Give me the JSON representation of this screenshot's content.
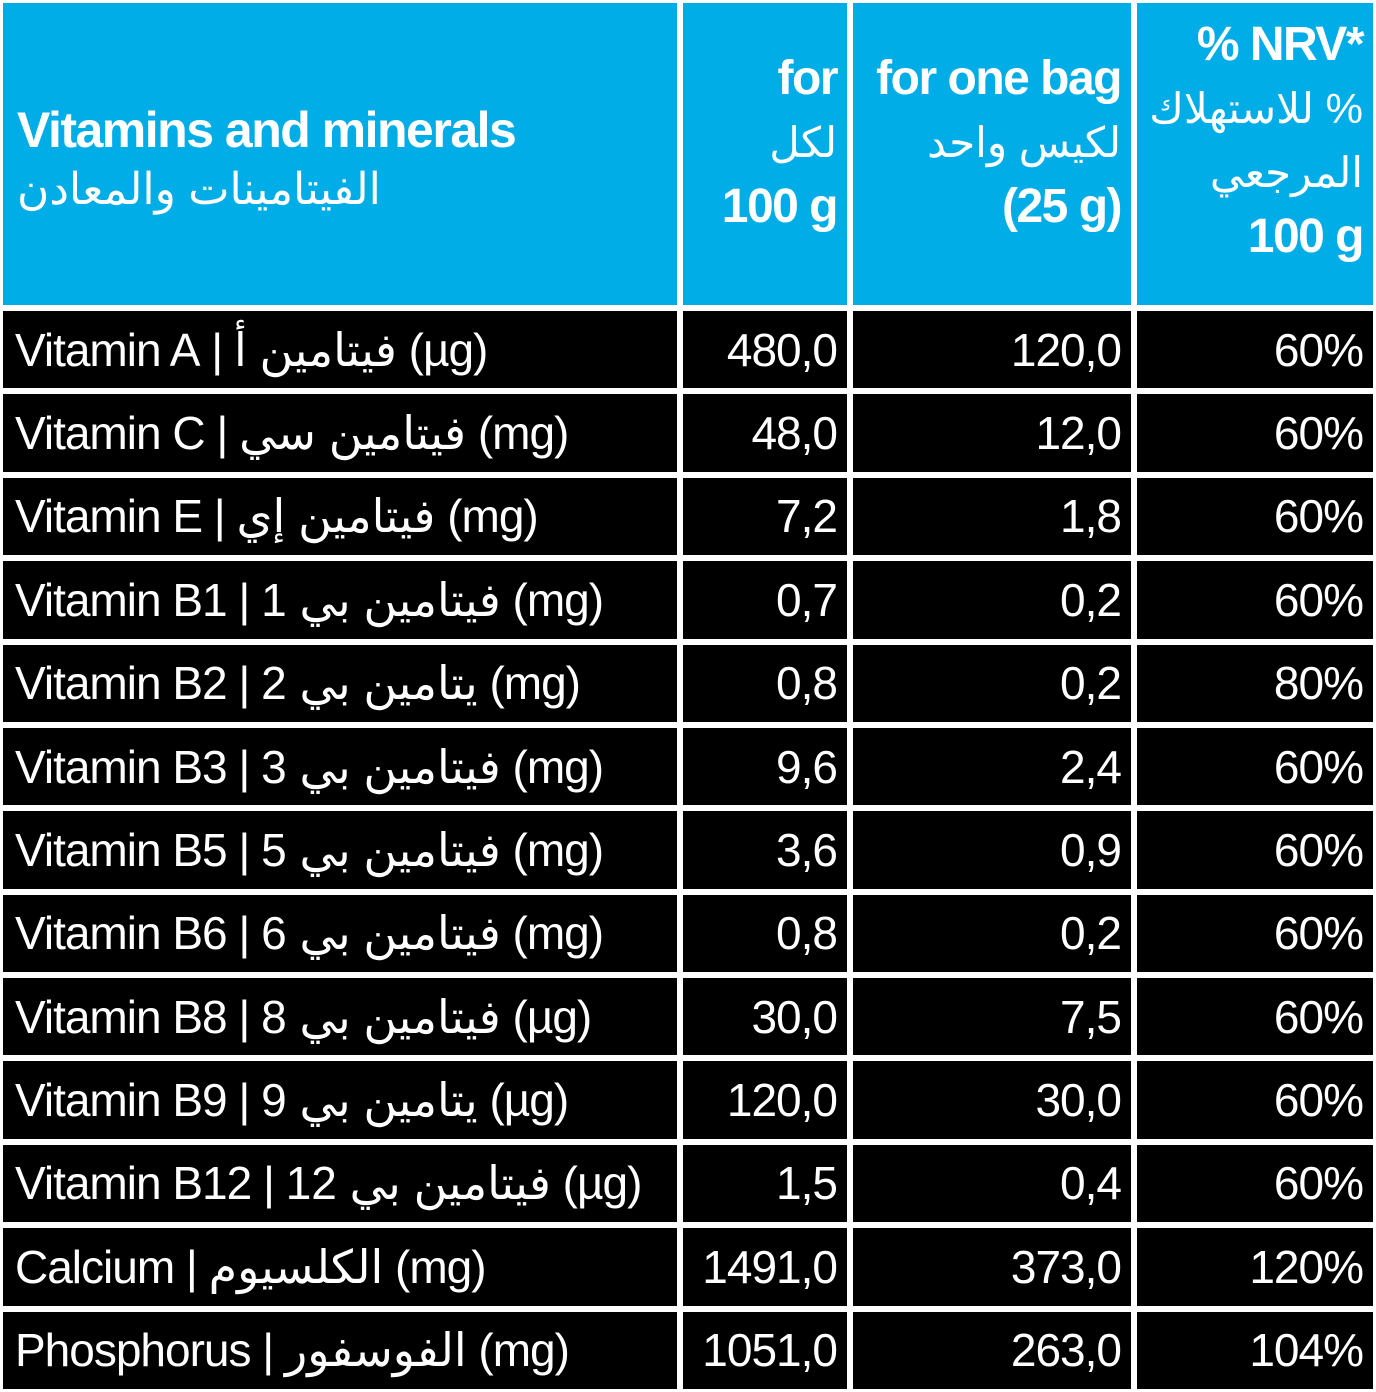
{
  "header": {
    "title_en": "Vitamins and minerals",
    "title_ar": "الفيتامينات والمعادن",
    "col_100g": [
      "for",
      "لكل",
      "100 g"
    ],
    "col_bag": [
      "for one bag",
      "لكيس واحد",
      "(25 g)"
    ],
    "col_nrv": [
      "% NRV*",
      "% للاستهلاك",
      "المرجعي",
      "100 g"
    ]
  },
  "rows": [
    {
      "name": "Vitamin A",
      "ar": "فيتامين أ",
      "unit": "(µg)",
      "per100": "480,0",
      "bag": "120,0",
      "nrv": "60%"
    },
    {
      "name": "Vitamin C",
      "ar": "فيتامين سي",
      "unit": "(mg)",
      "per100": "48,0",
      "bag": "12,0",
      "nrv": "60%"
    },
    {
      "name": "Vitamin E",
      "ar": "فيتامين إي",
      "unit": "(mg)",
      "per100": "7,2",
      "bag": "1,8",
      "nrv": "60%"
    },
    {
      "name": "Vitamin B1",
      "ar": "فيتامين بي 1",
      "unit": "(mg)",
      "per100": "0,7",
      "bag": "0,2",
      "nrv": "60%"
    },
    {
      "name": "Vitamin B2",
      "ar": "يتامين بي 2",
      "unit": "(mg)",
      "per100": "0,8",
      "bag": "0,2",
      "nrv": "80%"
    },
    {
      "name": "Vitamin B3",
      "ar": "فيتامين بي 3",
      "unit": "(mg)",
      "per100": "9,6",
      "bag": "2,4",
      "nrv": "60%"
    },
    {
      "name": "Vitamin B5",
      "ar": "فيتامين بي 5",
      "unit": "(mg)",
      "per100": "3,6",
      "bag": "0,9",
      "nrv": "60%"
    },
    {
      "name": "Vitamin B6",
      "ar": "فيتامين بي 6",
      "unit": "(mg)",
      "per100": "0,8",
      "bag": "0,2",
      "nrv": "60%"
    },
    {
      "name": "Vitamin B8",
      "ar": "فيتامين بي 8",
      "unit": "(µg)",
      "per100": "30,0",
      "bag": "7,5",
      "nrv": "60%"
    },
    {
      "name": "Vitamin B9",
      "ar": "يتامين بي 9",
      "unit": "(µg)",
      "per100": "120,0",
      "bag": "30,0",
      "nrv": "60%"
    },
    {
      "name": "Vitamin B12",
      "ar": "فيتامين بي 12",
      "unit": "(µg)",
      "per100": "1,5",
      "bag": "0,4",
      "nrv": "60%"
    },
    {
      "name": "Calcium",
      "ar": "الكلسيوم",
      "unit": "(mg)",
      "per100": "1491,0",
      "bag": "373,0",
      "nrv": "120%"
    },
    {
      "name": "Phosphorus",
      "ar": "الفوسفور",
      "unit": "(mg)",
      "per100": "1051,0",
      "bag": "263,0",
      "nrv": "104%"
    }
  ],
  "colors": {
    "header_bg": "#00ade6",
    "body_bg": "#000000",
    "text": "#ffffff",
    "border": "#ffffff"
  }
}
